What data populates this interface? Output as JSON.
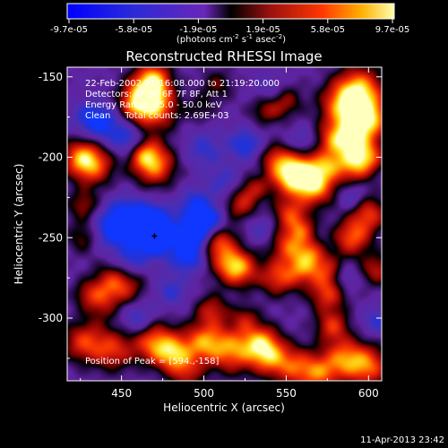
{
  "chart_data": {
    "type": "heatmap",
    "title": "Reconstructed RHESSI Image",
    "xlabel": "Heliocentric X (arcsec)",
    "ylabel": "Heliocentric Y (arcsec)",
    "xlim": [
      417,
      608
    ],
    "ylim": [
      -339,
      -144
    ],
    "xticks": [
      450,
      500,
      550,
      600
    ],
    "yticks": [
      -150,
      -200,
      -250,
      -300
    ],
    "colorbar": {
      "tick_labels": [
        "-9.7e-05",
        "-5.8e-05",
        "-1.9e-05",
        "1.9e-05",
        "5.8e-05",
        "9.7e-05"
      ],
      "label_prefix": "(photons cm",
      "label_exp1": "-2",
      "label_mid": " s",
      "label_exp2": "-1",
      "label_mid2": " asec",
      "label_exp3": "-2",
      "label_suffix": ")",
      "range": [
        -9.7e-05,
        9.7e-05
      ]
    },
    "annotations": [
      "22-Feb-2002 21:16:08.000 to 21:19:20.000",
      "Detectors: 4F 5F 6F 7F 8F, Att 1",
      "Energy Range: 25.0 - 50.0 keV",
      "Clean     Total counts: 2.69E+03"
    ],
    "peak_label": "Position of Peak = [594.,-158]",
    "marker": [
      470,
      -249
    ],
    "blobs": [
      {
        "x": 465,
        "y": -160,
        "v": 1.0,
        "s": 9
      },
      {
        "x": 470,
        "y": -170,
        "v": 0.8,
        "s": 10
      },
      {
        "x": 470,
        "y": -205,
        "v": 0.95,
        "s": 9
      },
      {
        "x": 463,
        "y": -197,
        "v": 0.7,
        "s": 7
      },
      {
        "x": 457,
        "y": -168,
        "v": 0.45,
        "s": 7
      },
      {
        "x": 470,
        "y": -150,
        "v": 0.7,
        "s": 7
      },
      {
        "x": 433,
        "y": -205,
        "v": 0.8,
        "s": 9
      },
      {
        "x": 425,
        "y": -200,
        "v": 0.75,
        "s": 8
      },
      {
        "x": 427,
        "y": -230,
        "v": 0.5,
        "s": 7
      },
      {
        "x": 427,
        "y": -250,
        "v": 0.45,
        "s": 7
      },
      {
        "x": 448,
        "y": -280,
        "v": 0.9,
        "s": 10
      },
      {
        "x": 440,
        "y": -290,
        "v": 0.7,
        "s": 8
      },
      {
        "x": 428,
        "y": -285,
        "v": 0.35,
        "s": 6
      },
      {
        "x": 427,
        "y": -315,
        "v": 0.75,
        "s": 9
      },
      {
        "x": 445,
        "y": -320,
        "v": 0.7,
        "s": 9
      },
      {
        "x": 470,
        "y": -315,
        "v": 0.9,
        "s": 9
      },
      {
        "x": 482,
        "y": -323,
        "v": 0.9,
        "s": 8
      },
      {
        "x": 500,
        "y": -315,
        "v": 0.9,
        "s": 9
      },
      {
        "x": 518,
        "y": -320,
        "v": 0.9,
        "s": 10
      },
      {
        "x": 535,
        "y": -315,
        "v": 0.85,
        "s": 8
      },
      {
        "x": 490,
        "y": -335,
        "v": 0.5,
        "s": 7
      },
      {
        "x": 505,
        "y": -295,
        "v": 0.6,
        "s": 7
      },
      {
        "x": 515,
        "y": -265,
        "v": 0.7,
        "s": 8
      },
      {
        "x": 522,
        "y": -270,
        "v": 0.75,
        "s": 8
      },
      {
        "x": 525,
        "y": -300,
        "v": 0.45,
        "s": 6
      },
      {
        "x": 522,
        "y": -230,
        "v": 0.6,
        "s": 7
      },
      {
        "x": 530,
        "y": -220,
        "v": 0.5,
        "s": 6
      },
      {
        "x": 505,
        "y": -255,
        "v": 0.55,
        "s": 6
      },
      {
        "x": 512,
        "y": -250,
        "v": 0.45,
        "s": 6
      },
      {
        "x": 538,
        "y": -170,
        "v": 0.55,
        "s": 7
      },
      {
        "x": 550,
        "y": -165,
        "v": 0.5,
        "s": 7
      },
      {
        "x": 543,
        "y": -200,
        "v": 0.45,
        "s": 6
      },
      {
        "x": 550,
        "y": -210,
        "v": 0.85,
        "s": 9
      },
      {
        "x": 560,
        "y": -210,
        "v": 0.85,
        "s": 9
      },
      {
        "x": 568,
        "y": -218,
        "v": 0.9,
        "s": 9
      },
      {
        "x": 552,
        "y": -235,
        "v": 0.7,
        "s": 7
      },
      {
        "x": 552,
        "y": -255,
        "v": 0.8,
        "s": 8
      },
      {
        "x": 560,
        "y": -270,
        "v": 0.7,
        "s": 7
      },
      {
        "x": 545,
        "y": -275,
        "v": 0.75,
        "s": 8
      },
      {
        "x": 560,
        "y": -245,
        "v": 0.55,
        "s": 6
      },
      {
        "x": 565,
        "y": -260,
        "v": 0.6,
        "s": 6
      },
      {
        "x": 575,
        "y": -285,
        "v": 0.75,
        "s": 8
      },
      {
        "x": 590,
        "y": -250,
        "v": 0.85,
        "s": 8
      },
      {
        "x": 600,
        "y": -235,
        "v": 0.75,
        "s": 8
      },
      {
        "x": 575,
        "y": -270,
        "v": 0.6,
        "s": 7
      },
      {
        "x": 595,
        "y": -158,
        "v": 1.0,
        "s": 10
      },
      {
        "x": 585,
        "y": -168,
        "v": 0.95,
        "s": 10
      },
      {
        "x": 603,
        "y": -175,
        "v": 0.75,
        "s": 8
      },
      {
        "x": 593,
        "y": -185,
        "v": 0.9,
        "s": 9
      },
      {
        "x": 580,
        "y": -190,
        "v": 0.8,
        "s": 8
      },
      {
        "x": 590,
        "y": -205,
        "v": 0.85,
        "s": 8
      },
      {
        "x": 600,
        "y": -200,
        "v": 0.7,
        "s": 7
      },
      {
        "x": 575,
        "y": -205,
        "v": 0.5,
        "s": 6
      },
      {
        "x": 578,
        "y": -305,
        "v": 0.7,
        "s": 7
      },
      {
        "x": 585,
        "y": -325,
        "v": 0.85,
        "s": 9
      },
      {
        "x": 600,
        "y": -330,
        "v": 0.85,
        "s": 9
      },
      {
        "x": 555,
        "y": -330,
        "v": 0.75,
        "s": 9
      },
      {
        "x": 540,
        "y": -325,
        "v": 0.7,
        "s": 8
      },
      {
        "x": 570,
        "y": -335,
        "v": 0.75,
        "s": 8
      },
      {
        "x": 508,
        "y": -155,
        "v": 0.4,
        "s": 7
      },
      {
        "x": 498,
        "y": -170,
        "v": 0.3,
        "s": 6
      },
      {
        "x": 605,
        "y": -270,
        "v": 0.6,
        "s": 7
      },
      {
        "x": 470,
        "y": -249,
        "v": -1.0,
        "s": 9
      },
      {
        "x": 468,
        "y": -240,
        "v": -0.6,
        "s": 8
      },
      {
        "x": 445,
        "y": -245,
        "v": -0.7,
        "s": 9
      },
      {
        "x": 453,
        "y": -235,
        "v": -0.5,
        "s": 8
      },
      {
        "x": 495,
        "y": -248,
        "v": -0.85,
        "s": 8
      },
      {
        "x": 495,
        "y": -230,
        "v": -0.6,
        "s": 7
      },
      {
        "x": 490,
        "y": -262,
        "v": -0.6,
        "s": 7
      },
      {
        "x": 505,
        "y": -238,
        "v": -0.45,
        "s": 6
      },
      {
        "x": 445,
        "y": -290,
        "v": -0.5,
        "s": 7
      },
      {
        "x": 440,
        "y": -180,
        "v": -0.55,
        "s": 8
      },
      {
        "x": 430,
        "y": -175,
        "v": -0.45,
        "s": 7
      },
      {
        "x": 455,
        "y": -190,
        "v": -0.6,
        "s": 7
      },
      {
        "x": 540,
        "y": -160,
        "v": -0.35,
        "s": 7
      },
      {
        "x": 525,
        "y": -192,
        "v": -0.55,
        "s": 7
      },
      {
        "x": 535,
        "y": -245,
        "v": -0.3,
        "s": 6
      },
      {
        "x": 512,
        "y": -215,
        "v": -0.35,
        "s": 7
      },
      {
        "x": 560,
        "y": -190,
        "v": -0.3,
        "s": 6
      },
      {
        "x": 590,
        "y": -225,
        "v": -0.4,
        "s": 6
      },
      {
        "x": 585,
        "y": -275,
        "v": -0.35,
        "s": 6
      },
      {
        "x": 460,
        "y": -300,
        "v": -0.5,
        "s": 7
      },
      {
        "x": 500,
        "y": -195,
        "v": -0.4,
        "s": 8
      },
      {
        "x": 455,
        "y": -265,
        "v": -0.5,
        "s": 7
      },
      {
        "x": 480,
        "y": -283,
        "v": -0.4,
        "s": 7
      },
      {
        "x": 605,
        "y": -302,
        "v": -0.4,
        "s": 6
      }
    ]
  },
  "footer": {
    "timestamp": "11-Apr-2013 23:42"
  }
}
